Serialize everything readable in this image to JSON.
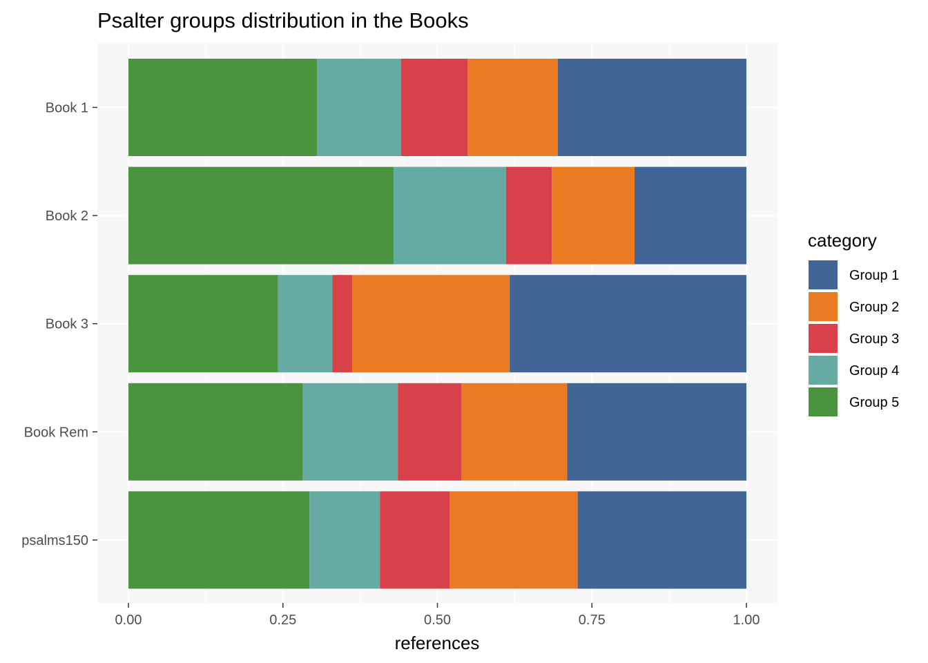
{
  "chart_data": {
    "type": "bar",
    "orientation": "horizontal",
    "stacked": "fill",
    "title": "Psalter groups distribution in the Books",
    "xlabel": "references",
    "ylabel": "",
    "xlim": [
      0,
      1
    ],
    "x_ticks": [
      "0.00",
      "0.25",
      "0.50",
      "0.75",
      "1.00"
    ],
    "categories": [
      "Book 1",
      "Book 2",
      "Book 3",
      "Book Rem",
      "psalms150"
    ],
    "legend_title": "category",
    "legend_position": "right",
    "grid": true,
    "stack_order": [
      "Group 5",
      "Group 4",
      "Group 3",
      "Group 2",
      "Group 1"
    ],
    "series": [
      {
        "name": "Group 1",
        "color": "#406596",
        "values": [
          0.305,
          0.181,
          0.383,
          0.29,
          0.273
        ]
      },
      {
        "name": "Group 2",
        "color": "#EA7B23",
        "values": [
          0.146,
          0.134,
          0.255,
          0.171,
          0.207
        ]
      },
      {
        "name": "Group 3",
        "color": "#D8414A",
        "values": [
          0.108,
          0.074,
          0.032,
          0.103,
          0.113
        ]
      },
      {
        "name": "Group 4",
        "color": "#66AAA4",
        "values": [
          0.136,
          0.182,
          0.088,
          0.154,
          0.114
        ]
      },
      {
        "name": "Group 5",
        "color": "#4A933F",
        "values": [
          0.305,
          0.429,
          0.242,
          0.282,
          0.293
        ]
      }
    ]
  }
}
